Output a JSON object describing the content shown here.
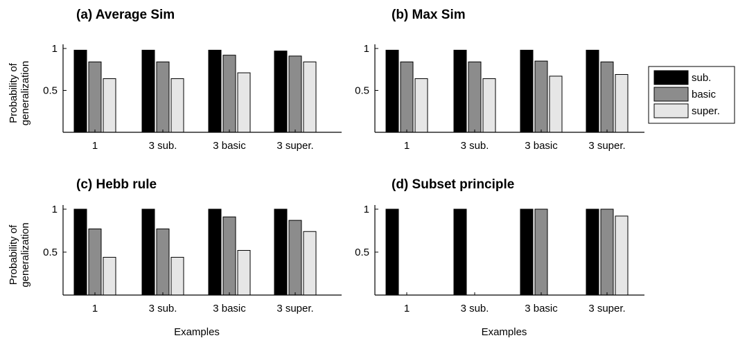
{
  "legend": {
    "entries": [
      {
        "label": "sub.",
        "color": "#000000"
      },
      {
        "label": "basic",
        "color": "#8c8c8c"
      },
      {
        "label": "super.",
        "color": "#e6e6e6"
      }
    ]
  },
  "chart_data": [
    {
      "type": "bar",
      "title": "(a) Average Sim",
      "ylabel": [
        "Probability of",
        "generalization"
      ],
      "xlabel": "",
      "ylim": [
        0,
        1
      ],
      "yticks": [
        0.5,
        1
      ],
      "ytick_labels": [
        "0.5",
        "1"
      ],
      "categories": [
        "1",
        "3 sub.",
        "3 basic",
        "3 super."
      ],
      "series": [
        {
          "name": "sub.",
          "color": "#000000",
          "values": [
            0.98,
            0.98,
            0.98,
            0.97
          ]
        },
        {
          "name": "basic",
          "color": "#8c8c8c",
          "values": [
            0.84,
            0.84,
            0.92,
            0.91
          ]
        },
        {
          "name": "super.",
          "color": "#e6e6e6",
          "values": [
            0.64,
            0.64,
            0.71,
            0.84
          ]
        }
      ]
    },
    {
      "type": "bar",
      "title": "(b) Max Sim",
      "ylabel": [],
      "xlabel": "",
      "ylim": [
        0,
        1
      ],
      "yticks": [
        0.5,
        1
      ],
      "ytick_labels": [
        "0.5",
        "1"
      ],
      "categories": [
        "1",
        "3 sub.",
        "3 basic",
        "3 super."
      ],
      "series": [
        {
          "name": "sub.",
          "color": "#000000",
          "values": [
            0.98,
            0.98,
            0.98,
            0.98
          ]
        },
        {
          "name": "basic",
          "color": "#8c8c8c",
          "values": [
            0.84,
            0.84,
            0.85,
            0.84
          ]
        },
        {
          "name": "super.",
          "color": "#e6e6e6",
          "values": [
            0.64,
            0.64,
            0.67,
            0.69
          ]
        }
      ]
    },
    {
      "type": "bar",
      "title": "(c) Hebb rule",
      "ylabel": [
        "Probability of",
        "generalization"
      ],
      "xlabel": "Examples",
      "ylim": [
        0,
        1
      ],
      "yticks": [
        0.5,
        1
      ],
      "ytick_labels": [
        "0.5",
        "1"
      ],
      "categories": [
        "1",
        "3 sub.",
        "3 basic",
        "3 super."
      ],
      "series": [
        {
          "name": "sub.",
          "color": "#000000",
          "values": [
            1.0,
            1.0,
            1.0,
            1.0
          ]
        },
        {
          "name": "basic",
          "color": "#8c8c8c",
          "values": [
            0.77,
            0.77,
            0.91,
            0.87
          ]
        },
        {
          "name": "super.",
          "color": "#e6e6e6",
          "values": [
            0.44,
            0.44,
            0.52,
            0.74
          ]
        }
      ]
    },
    {
      "type": "bar",
      "title": "(d) Subset principle",
      "ylabel": [],
      "xlabel": "Examples",
      "ylim": [
        0,
        1
      ],
      "yticks": [
        0.5,
        1
      ],
      "ytick_labels": [
        "0.5",
        "1"
      ],
      "categories": [
        "1",
        "3 sub.",
        "3 basic",
        "3 super."
      ],
      "series": [
        {
          "name": "sub.",
          "color": "#000000",
          "values": [
            1.0,
            1.0,
            1.0,
            1.0
          ]
        },
        {
          "name": "basic",
          "color": "#8c8c8c",
          "values": [
            0,
            0,
            1.0,
            1.0
          ]
        },
        {
          "name": "super.",
          "color": "#e6e6e6",
          "values": [
            0,
            0,
            0,
            0.92
          ]
        }
      ]
    }
  ]
}
